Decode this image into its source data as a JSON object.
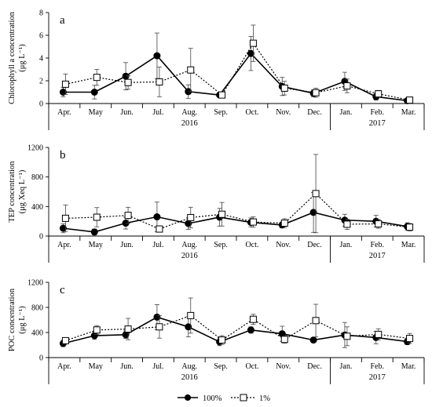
{
  "chart_data": [
    {
      "type": "line",
      "panel_label": "a",
      "ylabel": "Chlorophyll a concentration",
      "yunit": "(μg L⁻¹)",
      "ylim": [
        0,
        8
      ],
      "yticks": [
        0,
        2,
        4,
        6,
        8
      ],
      "categories": [
        "Apr.",
        "May",
        "Jun.",
        "Jul.",
        "Aug.",
        "Sep.",
        "Oct.",
        "Nov.",
        "Dec.",
        "Jan.",
        "Feb.",
        "Mar."
      ],
      "year_groups": [
        {
          "label": "2016",
          "start": 0,
          "end": 8
        },
        {
          "label": "2017",
          "start": 9,
          "end": 11
        }
      ],
      "series": [
        {
          "name": "100%",
          "marker": "filled-circle",
          "line": "solid",
          "values": [
            1.0,
            1.0,
            2.4,
            4.2,
            1.05,
            0.75,
            4.4,
            1.5,
            0.9,
            1.95,
            0.6,
            0.25
          ],
          "errors": [
            0.4,
            0.6,
            1.2,
            2.0,
            0.6,
            0.15,
            1.5,
            0.8,
            0.3,
            0.8,
            0.3,
            0.1
          ]
        },
        {
          "name": "1%",
          "marker": "open-square",
          "line": "dotted",
          "values": [
            1.7,
            2.3,
            1.85,
            1.9,
            2.95,
            0.75,
            5.3,
            1.35,
            0.95,
            1.55,
            0.85,
            0.3
          ],
          "errors": [
            0.9,
            0.7,
            0.6,
            1.3,
            1.9,
            0.15,
            1.6,
            0.6,
            0.4,
            0.6,
            0.3,
            0.1
          ]
        }
      ]
    },
    {
      "type": "line",
      "panel_label": "b",
      "ylabel": "TEP concentration",
      "yunit": "(μg Xeq L⁻¹)",
      "ylim": [
        0,
        1200
      ],
      "yticks": [
        0,
        400,
        800,
        1200
      ],
      "categories": [
        "Apr.",
        "May",
        "Jun.",
        "Jul.",
        "Aug.",
        "Sep.",
        "Oct.",
        "Nov.",
        "Dec.",
        "Jan.",
        "Feb.",
        "Mar."
      ],
      "year_groups": [
        {
          "label": "2016",
          "start": 0,
          "end": 8
        },
        {
          "label": "2017",
          "start": 9,
          "end": 11
        }
      ],
      "series": [
        {
          "name": "100%",
          "marker": "filled-circle",
          "line": "solid",
          "values": [
            105,
            55,
            175,
            260,
            170,
            255,
            185,
            150,
            320,
            215,
            200,
            130
          ],
          "errors": [
            60,
            40,
            80,
            200,
            80,
            120,
            60,
            40,
            270,
            80,
            80,
            50
          ]
        },
        {
          "name": "1%",
          "marker": "open-square",
          "line": "dotted",
          "values": [
            240,
            255,
            280,
            95,
            250,
            295,
            190,
            175,
            575,
            160,
            165,
            120
          ],
          "errors": [
            180,
            130,
            110,
            40,
            140,
            160,
            70,
            60,
            530,
            70,
            60,
            50
          ]
        }
      ]
    },
    {
      "type": "line",
      "panel_label": "c",
      "ylabel": "POC concentration",
      "yunit": "(μg L⁻¹)",
      "ylim": [
        0,
        1200
      ],
      "yticks": [
        0,
        400,
        800,
        1200
      ],
      "categories": [
        "Apr.",
        "May",
        "Jun.",
        "Jul.",
        "Aug.",
        "Sep.",
        "Oct.",
        "Nov.",
        "Dec.",
        "Jan.",
        "Feb.",
        "Mar."
      ],
      "year_groups": [
        {
          "label": "2016",
          "start": 0,
          "end": 8
        },
        {
          "label": "2017",
          "start": 9,
          "end": 11
        }
      ],
      "series": [
        {
          "name": "100%",
          "marker": "filled-circle",
          "line": "solid",
          "values": [
            225,
            350,
            365,
            645,
            490,
            250,
            440,
            380,
            280,
            360,
            320,
            255
          ],
          "errors": [
            50,
            60,
            60,
            200,
            160,
            60,
            50,
            120,
            40,
            200,
            100,
            50
          ]
        },
        {
          "name": "1%",
          "marker": "open-square",
          "line": "dotted",
          "values": [
            270,
            440,
            455,
            490,
            670,
            280,
            610,
            290,
            590,
            340,
            370,
            305
          ],
          "errors": [
            50,
            70,
            170,
            180,
            280,
            70,
            80,
            60,
            260,
            150,
            90,
            80
          ]
        }
      ]
    }
  ],
  "legend": {
    "placement": "bottom-center",
    "items": [
      "100%",
      "1%"
    ]
  }
}
